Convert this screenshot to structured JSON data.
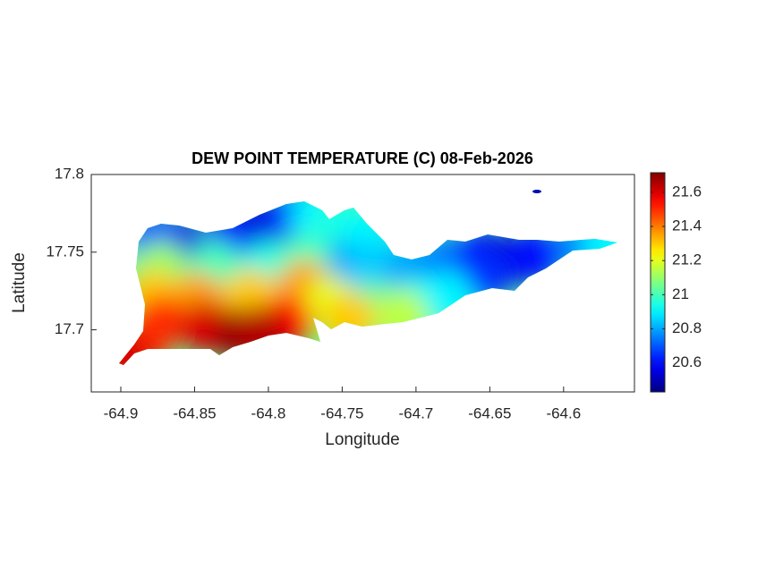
{
  "chart_data": {
    "type": "contour",
    "title": "DEW POINT TEMPERATURE (C) 08-Feb-2026",
    "xlabel": "Longitude",
    "ylabel": "Latitude",
    "xlim": [
      -64.92,
      -64.552
    ],
    "ylim": [
      17.66,
      17.8
    ],
    "xticks": [
      -64.9,
      -64.85,
      -64.8,
      -64.75,
      -64.7,
      -64.65,
      -64.6
    ],
    "yticks": [
      17.7,
      17.75,
      17.8
    ],
    "colormap": "jet",
    "clim": [
      20.43,
      21.715
    ],
    "cticks": [
      20.6,
      20.8,
      21,
      21.2,
      21.4,
      21.6
    ],
    "x": [
      -64.861,
      -64.879,
      -64.824,
      -64.8,
      -64.782,
      -64.767,
      -64.752,
      -64.733,
      -64.752,
      -64.727,
      -64.703,
      -64.679,
      -64.655,
      -64.636,
      -64.618,
      -64.588,
      -64.57,
      -64.655,
      -64.873,
      -64.836,
      -64.8,
      -64.776,
      -64.879,
      -64.848,
      -64.812,
      -64.776,
      -64.758,
      -64.727,
      -64.697,
      -64.679,
      -64.873,
      -64.842,
      -64.818,
      -64.788,
      -64.885,
      -64.897,
      -64.806,
      -64.745,
      -64.709,
      -64.618
    ],
    "y": [
      17.757,
      17.76,
      17.762,
      17.768,
      17.774,
      17.774,
      17.768,
      17.76,
      17.74,
      17.74,
      17.74,
      17.745,
      17.748,
      17.745,
      17.748,
      17.755,
      17.756,
      17.734,
      17.74,
      17.74,
      17.74,
      17.745,
      17.722,
      17.72,
      17.722,
      17.728,
      17.717,
      17.714,
      17.717,
      17.72,
      17.705,
      17.702,
      17.697,
      17.705,
      17.691,
      17.682,
      17.698,
      17.706,
      17.708,
      17.789
    ],
    "values": [
      20.55,
      20.7,
      20.6,
      20.55,
      20.65,
      20.9,
      20.95,
      20.9,
      20.8,
      20.85,
      20.8,
      20.75,
      20.6,
      20.55,
      20.6,
      20.75,
      20.9,
      20.65,
      21.1,
      21.0,
      20.95,
      21.0,
      21.3,
      21.35,
      21.3,
      21.35,
      21.2,
      21.05,
      20.95,
      20.9,
      21.5,
      21.6,
      21.7,
      21.55,
      21.5,
      21.6,
      21.65,
      21.3,
      21.15,
      20.5
    ]
  }
}
